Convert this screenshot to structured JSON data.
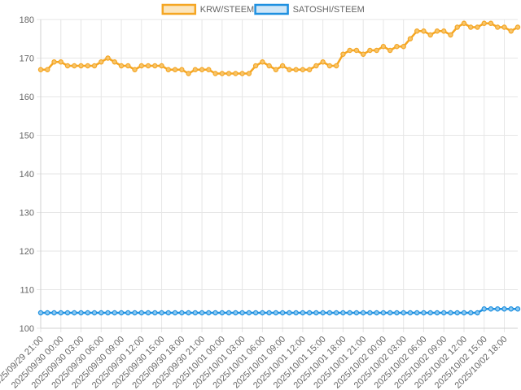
{
  "chart_data": {
    "type": "line",
    "title": "",
    "xlabel": "",
    "ylabel": "",
    "ylim": [
      100,
      180
    ],
    "y_ticks": [
      100,
      110,
      120,
      130,
      140,
      150,
      160,
      170,
      180
    ],
    "grid": true,
    "legend_position": "top-center",
    "x_tick_labels": [
      "2025/09/29 21:00",
      "2025/09/30 00:00",
      "2025/09/30 03:00",
      "2025/09/30 06:00",
      "2025/09/30 09:00",
      "2025/09/30 12:00",
      "2025/09/30 15:00",
      "2025/09/30 18:00",
      "2025/09/30 21:00",
      "2025/10/01 00:00",
      "2025/10/01 03:00",
      "2025/10/01 06:00",
      "2025/10/01 09:00",
      "2025/10/01 12:00",
      "2025/10/01 15:00",
      "2025/10/01 18:00",
      "2025/10/01 21:00",
      "2025/10/02 00:00",
      "2025/10/02 03:00",
      "2025/10/02 06:00",
      "2025/10/02 09:00",
      "2025/10/02 12:00",
      "2025/10/02 15:00",
      "2025/10/02 18:00"
    ],
    "series": [
      {
        "name": "KRW/STEEM",
        "color": "#f5a623",
        "values": [
          167,
          167,
          169,
          169,
          168,
          168,
          168,
          168,
          168,
          169,
          170,
          169,
          168,
          168,
          167,
          168,
          168,
          168,
          168,
          167,
          167,
          167,
          166,
          167,
          167,
          167,
          166,
          166,
          166,
          166,
          166,
          166,
          168,
          169,
          168,
          167,
          168,
          167,
          167,
          167,
          167,
          168,
          169,
          168,
          168,
          171,
          172,
          172,
          171,
          172,
          172,
          173,
          172,
          173,
          173,
          175,
          177,
          177,
          176,
          177,
          177,
          176,
          178,
          179,
          178,
          178,
          179,
          179,
          178,
          178,
          177,
          178
        ]
      },
      {
        "name": "SATOSHI/STEEM",
        "color": "#1e90e0",
        "values": [
          104,
          104,
          104,
          104,
          104,
          104,
          104,
          104,
          104,
          104,
          104,
          104,
          104,
          104,
          104,
          104,
          104,
          104,
          104,
          104,
          104,
          104,
          104,
          104,
          104,
          104,
          104,
          104,
          104,
          104,
          104,
          104,
          104,
          104,
          104,
          104,
          104,
          104,
          104,
          104,
          104,
          104,
          104,
          104,
          104,
          104,
          104,
          104,
          104,
          104,
          104,
          104,
          104,
          104,
          104,
          104,
          104,
          104,
          104,
          104,
          104,
          104,
          104,
          104,
          104,
          104,
          105,
          105,
          105,
          105,
          105,
          105
        ]
      }
    ]
  }
}
